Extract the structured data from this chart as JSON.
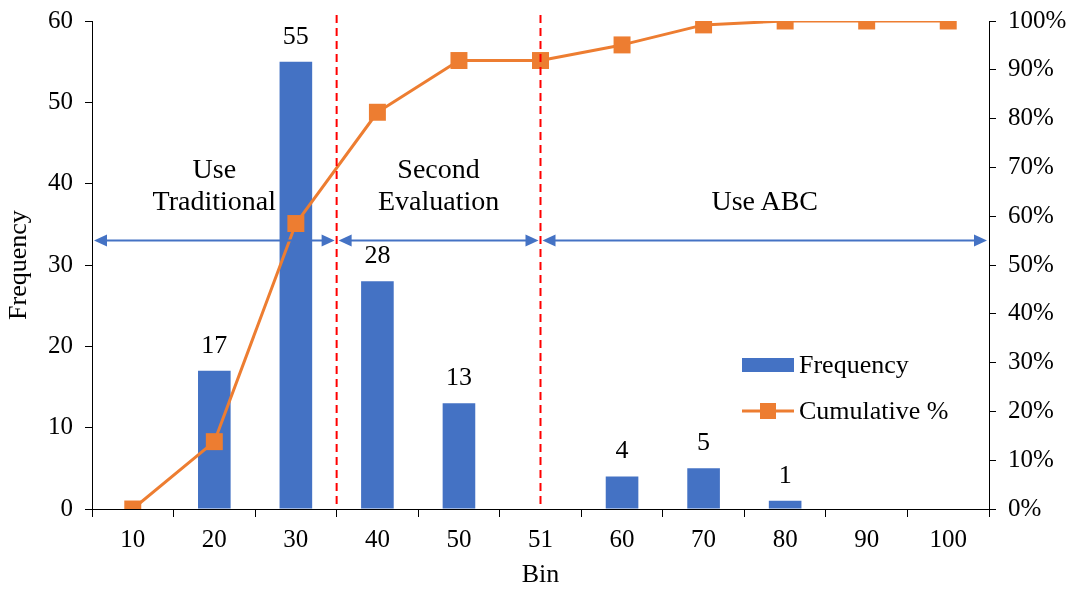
{
  "chart_data": {
    "type": "bar",
    "xlabel": "Bin",
    "ylabel": "Frequency",
    "categories": [
      "10",
      "20",
      "30",
      "40",
      "50",
      "51",
      "60",
      "70",
      "80",
      "90",
      "100"
    ],
    "series": [
      {
        "name": "Frequency",
        "color": "#4472c4",
        "values": [
          0,
          17,
          55,
          28,
          13,
          0,
          4,
          5,
          1,
          0,
          0
        ],
        "value_labels": [
          null,
          "17",
          "55",
          "28",
          "13",
          null,
          "4",
          "5",
          "1",
          null,
          null
        ]
      },
      {
        "name": "Cumulative %",
        "type": "line",
        "axis": "y2",
        "color": "#ed7d31",
        "values": [
          0,
          13.8,
          58.5,
          81.3,
          91.9,
          91.9,
          95.1,
          99.2,
          100,
          100,
          100
        ]
      }
    ],
    "ylim": [
      0,
      60
    ],
    "yticks": [
      0,
      10,
      20,
      30,
      40,
      50,
      60
    ],
    "y2lim": [
      0,
      100
    ],
    "y2ticks": [
      {
        "value": 0,
        "label": "0%"
      },
      {
        "value": 10,
        "label": "10%"
      },
      {
        "value": 20,
        "label": "20%"
      },
      {
        "value": 30,
        "label": "30%"
      },
      {
        "value": 40,
        "label": "40%"
      },
      {
        "value": 50,
        "label": "50%"
      },
      {
        "value": 60,
        "label": "60%"
      },
      {
        "value": 70,
        "label": "70%"
      },
      {
        "value": 80,
        "label": "80%"
      },
      {
        "value": 90,
        "label": "90%"
      },
      {
        "value": 100,
        "label": "100%"
      }
    ],
    "ref_lines": [
      {
        "axis": "x",
        "value": "51",
        "color": "#ff0000",
        "line_style": "dashed"
      }
    ],
    "annotations": [
      "Use Traditional",
      "Second Evaluation",
      "Use ABC"
    ],
    "marker": "square",
    "legend": "bottom right"
  }
}
